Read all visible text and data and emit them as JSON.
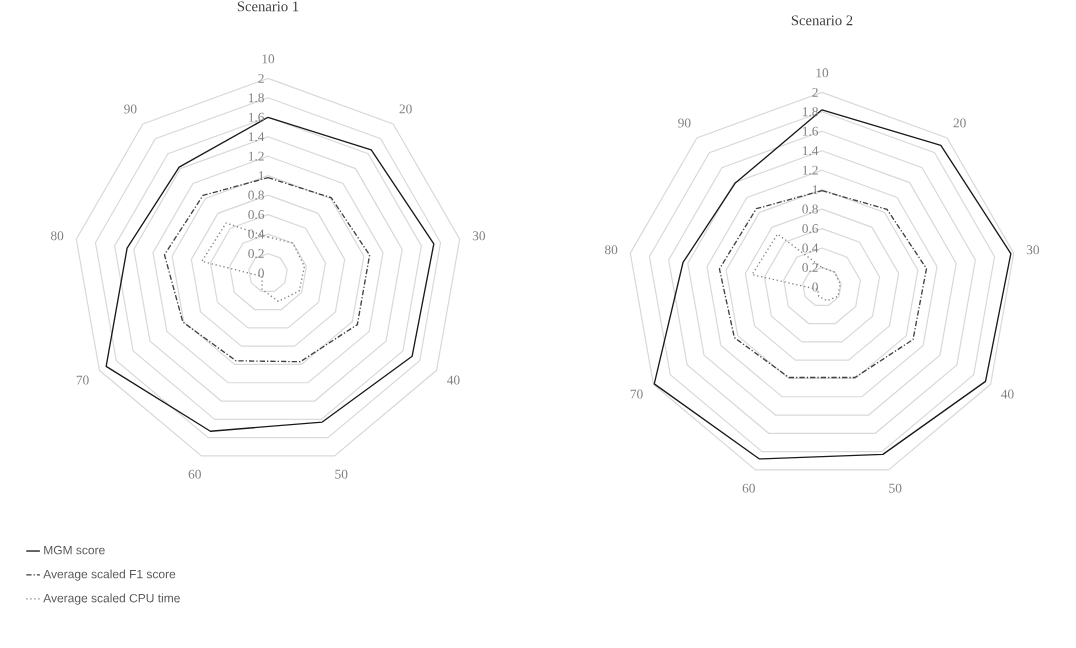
{
  "chart_data": [
    {
      "type": "radar",
      "title": "Scenario 1",
      "categories": [
        "10",
        "20",
        "30",
        "40",
        "50",
        "60",
        "70",
        "80",
        "90"
      ],
      "ylim": [
        0,
        2
      ],
      "yticks": [
        0,
        0.2,
        0.4,
        0.6,
        0.8,
        1,
        1.2,
        1.4,
        1.6,
        1.8,
        2
      ],
      "grid": true,
      "legend": "bottom",
      "series": [
        {
          "name": "MGM score",
          "color": "#1a1a1a",
          "line_style": "solid",
          "values": [
            1.6,
            1.65,
            1.73,
            1.71,
            1.63,
            1.73,
            1.92,
            1.47,
            1.42
          ]
        },
        {
          "name": "Average scaled F1 score",
          "color": "#404040",
          "line_style": "dashdot",
          "values": [
            0.98,
            1.01,
            1.06,
            1.06,
            0.97,
            0.96,
            1.01,
            1.08,
            1.04
          ]
        },
        {
          "name": "Average scaled CPU time",
          "color": "#808080",
          "line_style": "dotted",
          "values": [
            0.37,
            0.4,
            0.38,
            0.37,
            0.31,
            0.18,
            0.07,
            0.69,
            0.67
          ]
        }
      ]
    },
    {
      "type": "radar",
      "title": "Scenario 2",
      "categories": [
        "10",
        "20",
        "30",
        "40",
        "50",
        "60",
        "70",
        "80",
        "90"
      ],
      "ylim": [
        0,
        2
      ],
      "yticks": [
        0,
        0.2,
        0.4,
        0.6,
        0.8,
        1,
        1.2,
        1.4,
        1.6,
        1.8,
        2
      ],
      "grid": true,
      "series": [
        {
          "color": "#1a1a1a",
          "line_style": "solid",
          "values": [
            1.82,
            1.9,
            1.97,
            1.94,
            1.83,
            1.88,
            1.99,
            1.45,
            1.39
          ]
        },
        {
          "color": "#404040",
          "line_style": "dashdot",
          "values": [
            0.99,
            1.04,
            1.09,
            1.08,
            0.99,
            0.99,
            1.04,
            1.07,
            1.05
          ]
        },
        {
          "color": "#808080",
          "line_style": "dotted",
          "values": [
            0.2,
            0.2,
            0.19,
            0.19,
            0.15,
            0.1,
            0.05,
            0.73,
            0.71
          ]
        }
      ]
    }
  ]
}
